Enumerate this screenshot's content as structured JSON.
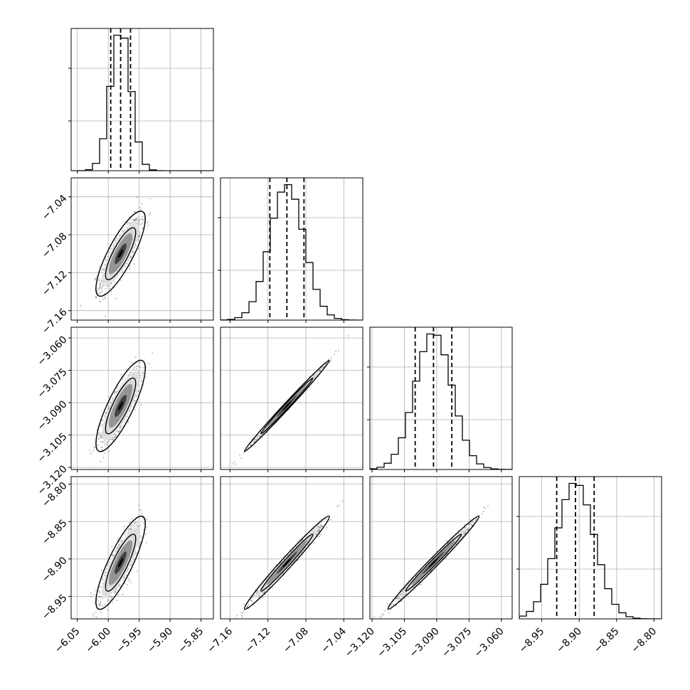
{
  "chart_data": {
    "type": "corner",
    "title": "",
    "dims": [
      {
        "label": "",
        "range": [
          -6.06,
          -5.83
        ],
        "ticks": [
          "-6.05",
          "-6.00",
          "-5.95",
          "-5.90",
          "-5.85"
        ],
        "tick_values": [
          -6.05,
          -6.0,
          -5.95,
          -5.9,
          -5.85
        ],
        "mean": -5.98,
        "sd": 0.016,
        "quantiles": [
          -5.996,
          -5.98,
          -5.964
        ]
      },
      {
        "label": "",
        "range": [
          -7.17,
          -7.02
        ],
        "ticks": [
          "-7.16",
          "-7.12",
          "-7.08",
          "-7.04"
        ],
        "tick_values": [
          -7.16,
          -7.12,
          -7.08,
          -7.04
        ],
        "mean": -7.1,
        "sd": 0.018,
        "quantiles": [
          -7.118,
          -7.1,
          -7.082
        ]
      },
      {
        "label": "",
        "range": [
          -3.121,
          -3.055
        ],
        "ticks": [
          "-3.120",
          "-3.105",
          "-3.090",
          "-3.075",
          "-3.060"
        ],
        "tick_values": [
          -3.12,
          -3.105,
          -3.09,
          -3.075,
          -3.06
        ],
        "mean": -3.0915,
        "sd": 0.0085,
        "quantiles": [
          -3.1,
          -3.0915,
          -3.083
        ]
      },
      {
        "label": "",
        "range": [
          -8.98,
          -8.79
        ],
        "ticks": [
          "-8.95",
          "-8.90",
          "-8.85",
          "-8.80"
        ],
        "tick_values": [
          -8.95,
          -8.9,
          -8.85,
          -8.8
        ],
        "mean": -8.905,
        "sd": 0.025,
        "quantiles": [
          -8.93,
          -8.905,
          -8.88
        ]
      }
    ],
    "correlation": [
      [
        1.0,
        0.82,
        0.82,
        0.84
      ],
      [
        0.82,
        1.0,
        0.995,
        0.985
      ],
      [
        0.82,
        0.995,
        1.0,
        0.99
      ],
      [
        0.84,
        0.985,
        0.99,
        1.0
      ]
    ],
    "histogram_bins": 20,
    "contour_levels_sigma": [
      1,
      2
    ],
    "grid": true,
    "colors": {
      "line": "#000000",
      "points": "#555555",
      "grid": "#b0b0b0"
    }
  }
}
